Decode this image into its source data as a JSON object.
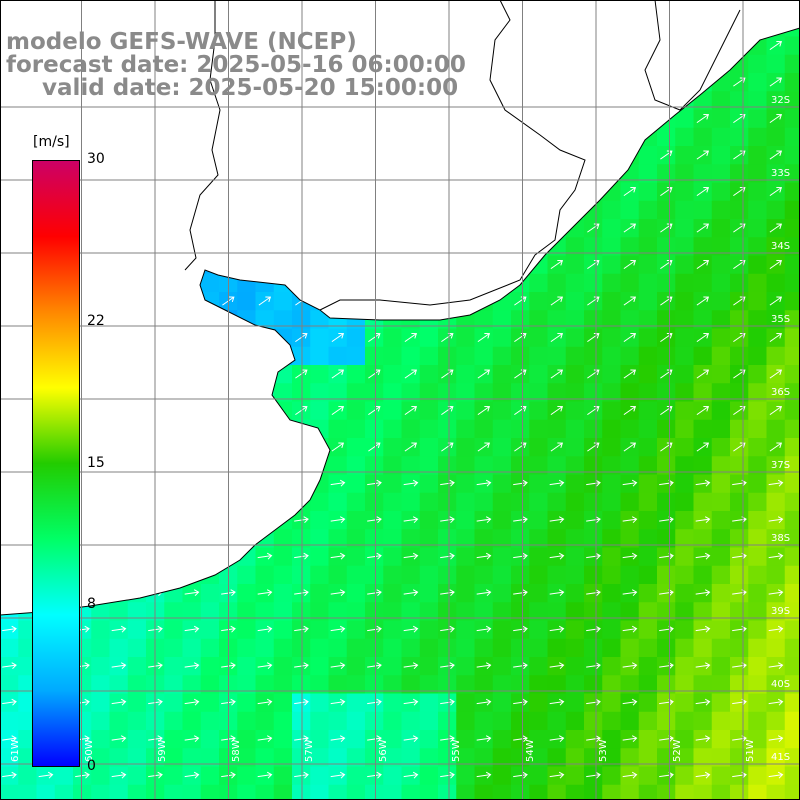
{
  "title": {
    "line1": "modelo GEFS-WAVE (NCEP)",
    "line2": "forecast date: 2025-05-16 06:00:00",
    "line3": "valid date: 2025-05-20 15:00:00"
  },
  "colorbar": {
    "unit": "[m/s]",
    "ticks": [
      "30",
      "22",
      "15",
      "8",
      "0"
    ],
    "tick_values": [
      30,
      22,
      15,
      8,
      0
    ],
    "range": [
      0,
      30
    ],
    "colors": [
      "#0000ff",
      "#00aaff",
      "#00ffff",
      "#00ff66",
      "#22cc00",
      "#ffff00",
      "#ff8800",
      "#ff0000",
      "#cc0066"
    ]
  },
  "map": {
    "lat_labels": [
      "32S",
      "33S",
      "34S",
      "35S",
      "36S",
      "37S",
      "38S",
      "39S",
      "40S",
      "41S"
    ],
    "lon_labels": [
      "61W",
      "60W",
      "59W",
      "58W",
      "57W",
      "56W",
      "55W",
      "54W",
      "53W",
      "52W",
      "51W"
    ],
    "wind_direction": "northeast",
    "colors": {
      "land": "#ffffff",
      "coast": "#000000",
      "grid": "#808080",
      "arrow": "#ffffff"
    }
  }
}
